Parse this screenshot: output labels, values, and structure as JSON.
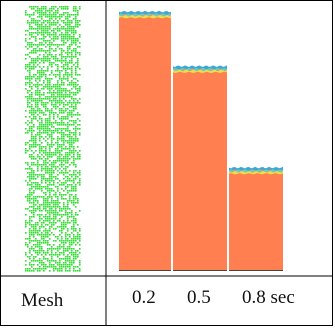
{
  "table": {
    "mesh_label": "Mesh",
    "times": [
      "0.2",
      "0.5",
      "0.8 sec"
    ]
  },
  "snapshots": [
    {
      "time": "0.2",
      "fill_level": 0.99
    },
    {
      "time": "0.5",
      "fill_level": 0.78
    },
    {
      "time": "0.8 sec",
      "fill_level": 0.39
    }
  ],
  "colors": {
    "fluid": "#ff7f50",
    "surface_top": "#3aa8d8",
    "surface_mid": "#6fc9c2",
    "surface_low": "#e8e04a",
    "mesh": "#33dd33",
    "border": "#000000"
  },
  "icons": {
    "mesh_panel": "speckled-green-mesh"
  }
}
